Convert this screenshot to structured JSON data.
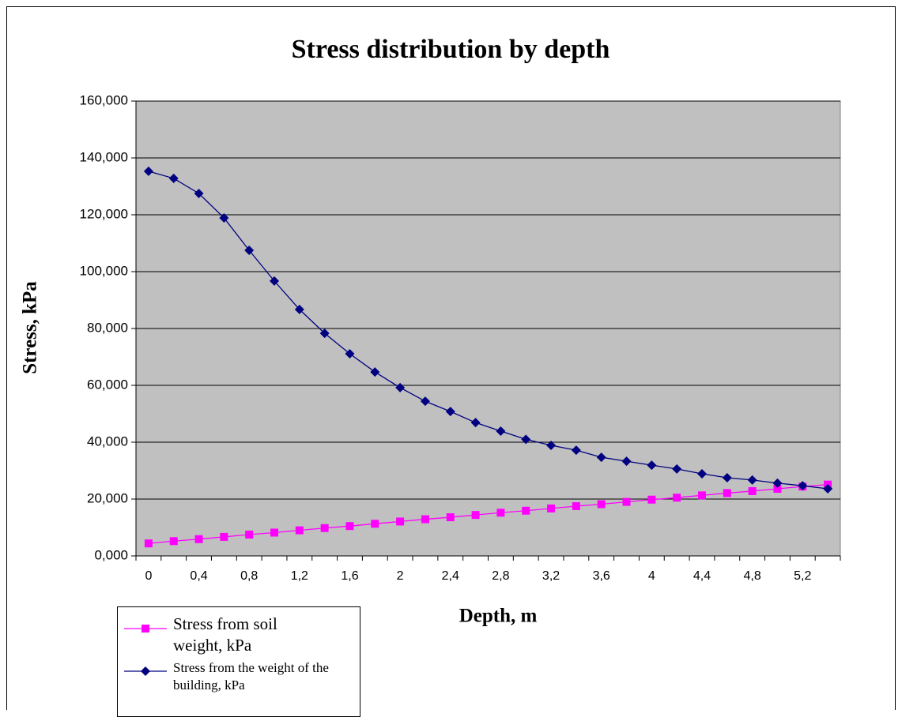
{
  "chart_data": {
    "type": "line",
    "title": "Stress distribution by depth",
    "xlabel": "Depth, m",
    "ylabel": "Stress, kPa",
    "categories": [
      "0",
      null,
      "0,4",
      null,
      "0,8",
      null,
      "1,2",
      null,
      "1,6",
      null,
      "2",
      null,
      "2,4",
      null,
      "2,8",
      null,
      "3,2",
      null,
      "3,6",
      null,
      "4",
      null,
      "4,4",
      null,
      "4,8",
      null,
      "5,2",
      null
    ],
    "series": [
      {
        "name": "Stress from soil weight, kPa",
        "color": "#ff00ff",
        "marker": "square",
        "values": [
          4.4,
          5.2,
          5.9,
          6.7,
          7.5,
          8.2,
          9.0,
          9.8,
          10.5,
          11.3,
          12.1,
          12.9,
          13.6,
          14.4,
          15.2,
          15.9,
          16.7,
          17.5,
          18.2,
          19.0,
          19.8,
          20.5,
          21.3,
          22.1,
          22.8,
          23.6,
          24.4,
          25.1
        ]
      },
      {
        "name": "Stress from the weight of the building, kPa",
        "color": "#000080",
        "marker": "diamond",
        "values": [
          135.3,
          132.8,
          127.5,
          118.9,
          107.5,
          96.7,
          86.7,
          78.3,
          71.1,
          64.7,
          59.2,
          54.4,
          50.8,
          46.9,
          43.9,
          41.0,
          38.9,
          37.2,
          34.7,
          33.3,
          31.9,
          30.6,
          28.9,
          27.5,
          26.7,
          25.6,
          24.7,
          23.6
        ]
      }
    ],
    "ylim": [
      0,
      160
    ],
    "yticks": [
      {
        "value": 0,
        "label": "0,000"
      },
      {
        "value": 20,
        "label": "20,000"
      },
      {
        "value": 40,
        "label": "40,000"
      },
      {
        "value": 60,
        "label": "60,000"
      },
      {
        "value": 80,
        "label": "80,000"
      },
      {
        "value": 100,
        "label": "100,000"
      },
      {
        "value": 120,
        "label": "120,000"
      },
      {
        "value": 140,
        "label": "140,000"
      },
      {
        "value": 160,
        "label": "160,000"
      }
    ],
    "grid": true,
    "plot_background": "#c0c0c0",
    "legend": "bottom-left"
  }
}
